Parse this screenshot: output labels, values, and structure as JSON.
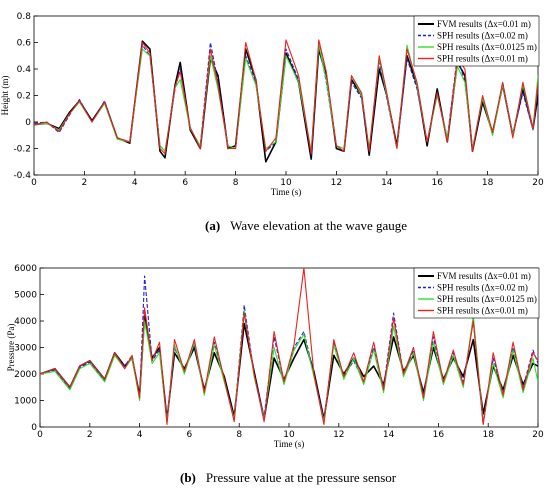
{
  "chart_data": [
    {
      "type": "line",
      "xlabel": "Time (s)",
      "ylabel": "Height (m)",
      "xlim": [
        0,
        20
      ],
      "ylim": [
        -0.4,
        0.8
      ],
      "xticks": [
        0,
        2,
        4,
        6,
        8,
        10,
        12,
        14,
        16,
        18,
        20
      ],
      "yticks": [
        -0.4,
        -0.2,
        0,
        0.2,
        0.4,
        0.6,
        0.8
      ],
      "legend_position": "top-right",
      "series": [
        {
          "name": "FVM results (Δx=0.01 m)",
          "color": "#000000",
          "dash": "solid",
          "x": [
            0,
            0.5,
            1,
            1.4,
            1.8,
            2.3,
            2.8,
            3.3,
            3.8,
            4.3,
            4.6,
            5,
            5.2,
            5.6,
            5.8,
            6.2,
            6.6,
            7,
            7.3,
            7.7,
            8,
            8.4,
            8.8,
            9.2,
            9.6,
            10,
            10.5,
            11,
            11.3,
            11.6,
            12,
            12.3,
            12.6,
            13,
            13.3,
            13.7,
            14,
            14.4,
            14.8,
            15.2,
            15.6,
            16,
            16.4,
            16.8,
            17.1,
            17.4,
            17.8,
            18.2,
            18.6,
            19,
            19.4,
            19.8,
            20
          ],
          "y": [
            -0.02,
            -0.01,
            -0.05,
            0.07,
            0.16,
            0.01,
            0.15,
            -0.12,
            -0.16,
            0.61,
            0.55,
            -0.22,
            -0.27,
            0.28,
            0.45,
            -0.06,
            -0.2,
            0.48,
            0.35,
            -0.2,
            -0.18,
            0.55,
            0.32,
            -0.3,
            -0.15,
            0.52,
            0.3,
            -0.28,
            0.55,
            0.35,
            -0.2,
            -0.22,
            0.32,
            0.2,
            -0.25,
            0.4,
            0.2,
            -0.18,
            0.5,
            0.28,
            -0.18,
            0.25,
            -0.15,
            0.45,
            0.35,
            -0.22,
            0.15,
            -0.08,
            0.28,
            -0.1,
            0.25,
            -0.05,
            0.2
          ]
        },
        {
          "name": "SPH results (Δx=0.02 m)",
          "color": "#1f1fd6",
          "dash": "dashed",
          "x": [
            0,
            0.5,
            1,
            1.4,
            1.8,
            2.3,
            2.8,
            3.3,
            3.8,
            4.3,
            4.6,
            5,
            5.2,
            5.6,
            5.8,
            6.2,
            6.6,
            7,
            7.3,
            7.7,
            8,
            8.4,
            8.8,
            9.2,
            9.6,
            10,
            10.5,
            11,
            11.3,
            11.6,
            12,
            12.3,
            12.6,
            13,
            13.3,
            13.7,
            14,
            14.4,
            14.8,
            15.2,
            15.6,
            16,
            16.4,
            16.8,
            17.1,
            17.4,
            17.8,
            18.2,
            18.6,
            19,
            19.4,
            19.8,
            20
          ],
          "y": [
            -0.01,
            0.0,
            -0.08,
            0.05,
            0.17,
            0.0,
            0.16,
            -0.12,
            -0.15,
            0.58,
            0.5,
            -0.18,
            -0.22,
            0.25,
            0.4,
            -0.05,
            -0.18,
            0.6,
            0.3,
            -0.18,
            -0.2,
            0.5,
            0.3,
            -0.22,
            -0.15,
            0.55,
            0.32,
            -0.25,
            0.6,
            0.3,
            -0.18,
            -0.2,
            0.3,
            0.18,
            -0.22,
            0.45,
            0.18,
            -0.2,
            0.48,
            0.25,
            -0.15,
            0.22,
            -0.12,
            0.5,
            0.3,
            -0.2,
            0.18,
            -0.1,
            0.3,
            -0.1,
            0.22,
            -0.06,
            0.25
          ]
        },
        {
          "name": "SPH results (Δx=0.0125 m)",
          "color": "#2de12d",
          "dash": "solid",
          "x": [
            0,
            0.5,
            1,
            1.4,
            1.8,
            2.3,
            2.8,
            3.3,
            3.8,
            4.3,
            4.6,
            5,
            5.2,
            5.6,
            5.8,
            6.2,
            6.6,
            7,
            7.3,
            7.7,
            8,
            8.4,
            8.8,
            9.2,
            9.6,
            10,
            10.5,
            11,
            11.3,
            11.6,
            12,
            12.3,
            12.6,
            13,
            13.3,
            13.7,
            14,
            14.4,
            14.8,
            15.2,
            15.6,
            16,
            16.4,
            16.8,
            17.1,
            17.4,
            17.8,
            18.2,
            18.6,
            19,
            19.4,
            19.8,
            20
          ],
          "y": [
            -0.02,
            -0.01,
            -0.06,
            0.06,
            0.15,
            0.0,
            0.14,
            -0.13,
            -0.15,
            0.55,
            0.5,
            -0.18,
            -0.22,
            0.26,
            0.32,
            -0.05,
            -0.18,
            0.5,
            0.25,
            -0.18,
            -0.2,
            0.48,
            0.28,
            -0.2,
            -0.15,
            0.5,
            0.3,
            -0.22,
            0.58,
            0.32,
            -0.18,
            -0.2,
            0.35,
            0.2,
            -0.2,
            0.48,
            0.2,
            -0.2,
            0.58,
            0.28,
            -0.15,
            0.2,
            -0.12,
            0.42,
            0.3,
            -0.2,
            0.18,
            -0.1,
            0.28,
            -0.1,
            0.28,
            -0.05,
            0.35
          ]
        },
        {
          "name": "SPH results (Δx=0.01 m)",
          "color": "#ee2020",
          "dash": "solid",
          "x": [
            0,
            0.5,
            1,
            1.4,
            1.8,
            2.3,
            2.8,
            3.3,
            3.8,
            4.3,
            4.6,
            5,
            5.2,
            5.6,
            5.8,
            6.2,
            6.6,
            7,
            7.3,
            7.7,
            8,
            8.4,
            8.8,
            9.2,
            9.6,
            10,
            10.5,
            11,
            11.3,
            11.6,
            12,
            12.3,
            12.6,
            13,
            13.3,
            13.7,
            14,
            14.4,
            14.8,
            15.2,
            15.6,
            16,
            16.4,
            16.8,
            17.1,
            17.4,
            17.8,
            18.2,
            18.6,
            19,
            19.4,
            19.8,
            20
          ],
          "y": [
            -0.02,
            0.0,
            -0.07,
            0.06,
            0.16,
            0.0,
            0.15,
            -0.12,
            -0.15,
            0.6,
            0.52,
            -0.2,
            -0.24,
            0.27,
            0.38,
            -0.04,
            -0.2,
            0.55,
            0.28,
            -0.2,
            -0.2,
            0.6,
            0.32,
            -0.22,
            -0.12,
            0.62,
            0.35,
            -0.24,
            0.62,
            0.38,
            -0.18,
            -0.22,
            0.35,
            0.22,
            -0.22,
            0.5,
            0.22,
            -0.2,
            0.55,
            0.3,
            -0.15,
            0.22,
            -0.15,
            0.48,
            0.4,
            -0.22,
            0.2,
            -0.08,
            0.3,
            -0.12,
            0.3,
            -0.05,
            0.3
          ]
        }
      ],
      "caption": {
        "label": "(a)",
        "text": "Wave elevation at the wave gauge"
      }
    },
    {
      "type": "line",
      "xlabel": "Time (s)",
      "ylabel": "Pressure (Pa)",
      "xlim": [
        0,
        20
      ],
      "ylim": [
        0,
        6000
      ],
      "xticks": [
        0,
        2,
        4,
        6,
        8,
        10,
        12,
        14,
        16,
        18,
        20
      ],
      "yticks": [
        0,
        1000,
        2000,
        3000,
        4000,
        5000,
        6000
      ],
      "legend_position": "top-right",
      "series": [
        {
          "name": "FVM results (Δx=0.01 m)",
          "color": "#000000",
          "dash": "solid",
          "x": [
            0,
            0.6,
            1.2,
            1.6,
            2,
            2.6,
            3,
            3.4,
            3.7,
            4,
            4.2,
            4.5,
            4.8,
            5.1,
            5.4,
            5.8,
            6.2,
            6.6,
            7,
            7.4,
            7.8,
            8.2,
            8.6,
            9,
            9.4,
            9.8,
            10.2,
            10.6,
            11,
            11.4,
            11.8,
            12.2,
            12.6,
            13,
            13.4,
            13.8,
            14.2,
            14.6,
            15,
            15.4,
            15.8,
            16.2,
            16.6,
            17,
            17.4,
            17.8,
            18.2,
            18.6,
            19,
            19.4,
            19.8,
            20
          ],
          "y": [
            2000,
            2200,
            1500,
            2300,
            2500,
            1800,
            2800,
            2300,
            2600,
            1200,
            4200,
            2600,
            3000,
            300,
            2800,
            2200,
            3000,
            1400,
            2800,
            1900,
            400,
            3900,
            2100,
            300,
            2600,
            1800,
            2600,
            3300,
            2100,
            300,
            2700,
            2000,
            2600,
            1900,
            2300,
            1600,
            3400,
            2100,
            2700,
            1300,
            3000,
            1800,
            2600,
            1900,
            3300,
            500,
            2300,
            1400,
            2700,
            1600,
            2400,
            2300
          ]
        },
        {
          "name": "SPH results (Δx=0.02 m)",
          "color": "#1f1fd6",
          "dash": "dashed",
          "x": [
            0,
            0.6,
            1.2,
            1.6,
            2,
            2.6,
            3,
            3.4,
            3.7,
            4,
            4.2,
            4.5,
            4.8,
            5.1,
            5.4,
            5.8,
            6.2,
            6.6,
            7,
            7.4,
            7.8,
            8.2,
            8.6,
            9,
            9.4,
            9.8,
            10.2,
            10.6,
            11,
            11.4,
            11.8,
            12.2,
            12.6,
            13,
            13.4,
            13.8,
            14.2,
            14.6,
            15,
            15.4,
            15.8,
            16.2,
            16.6,
            17,
            17.4,
            17.8,
            18.2,
            18.6,
            19,
            19.4,
            19.8,
            20
          ],
          "y": [
            2000,
            2150,
            1450,
            2250,
            2450,
            1750,
            2750,
            2300,
            2700,
            1100,
            5700,
            2500,
            2900,
            250,
            3000,
            2100,
            3100,
            1300,
            3200,
            1800,
            300,
            4600,
            2000,
            400,
            3400,
            1700,
            3000,
            3600,
            2000,
            250,
            3200,
            1900,
            2500,
            1700,
            3000,
            1500,
            4300,
            2000,
            2900,
            1200,
            3400,
            1700,
            2800,
            1700,
            4000,
            100,
            2600,
            1300,
            3000,
            1500,
            2900,
            2400
          ]
        },
        {
          "name": "SPH results (Δx=0.0125 m)",
          "color": "#2de12d",
          "dash": "solid",
          "x": [
            0,
            0.6,
            1.2,
            1.6,
            2,
            2.6,
            3,
            3.4,
            3.7,
            4,
            4.2,
            4.5,
            4.8,
            5.1,
            5.4,
            5.8,
            6.2,
            6.6,
            7,
            7.4,
            7.8,
            8.2,
            8.6,
            9,
            9.4,
            9.8,
            10.2,
            10.6,
            11,
            11.4,
            11.8,
            12.2,
            12.6,
            13,
            13.4,
            13.8,
            14.2,
            14.6,
            15,
            15.4,
            15.8,
            16.2,
            16.6,
            17,
            17.4,
            17.8,
            18.2,
            18.6,
            19,
            19.4,
            19.8,
            20
          ],
          "y": [
            2000,
            2100,
            1400,
            2200,
            2400,
            1700,
            2700,
            2200,
            2600,
            1000,
            4000,
            2400,
            2800,
            200,
            3100,
            2000,
            3200,
            1200,
            3100,
            1700,
            300,
            4400,
            1900,
            300,
            3000,
            1600,
            2900,
            3500,
            1900,
            200,
            3100,
            1800,
            2600,
            1600,
            2900,
            1300,
            3800,
            1900,
            2800,
            1000,
            3200,
            1600,
            2700,
            1500,
            4200,
            200,
            2400,
            1100,
            2900,
            1300,
            2600,
            1700
          ]
        },
        {
          "name": "SPH results (Δx=0.01 m)",
          "color": "#ee2020",
          "dash": "solid",
          "x": [
            0,
            0.6,
            1.2,
            1.6,
            2,
            2.6,
            3,
            3.4,
            3.7,
            4,
            4.2,
            4.5,
            4.8,
            5.1,
            5.4,
            5.8,
            6.2,
            6.6,
            7,
            7.4,
            7.8,
            8.2,
            8.6,
            9,
            9.4,
            9.8,
            10.2,
            10.6,
            11,
            11.4,
            11.8,
            12.2,
            12.6,
            13,
            13.4,
            13.8,
            14.2,
            14.6,
            15,
            15.4,
            15.8,
            16.2,
            16.6,
            17,
            17.4,
            17.8,
            18.2,
            18.6,
            19,
            19.4,
            19.8,
            20
          ],
          "y": [
            2000,
            2200,
            1500,
            2300,
            2500,
            1800,
            2800,
            2200,
            2700,
            1100,
            4500,
            2500,
            3200,
            100,
            3300,
            2100,
            3300,
            1300,
            3400,
            1800,
            200,
            4300,
            2000,
            200,
            3600,
            1700,
            3100,
            6000,
            2000,
            100,
            3300,
            1900,
            2800,
            1700,
            3200,
            1400,
            4100,
            2000,
            3000,
            1100,
            3600,
            1700,
            2900,
            1600,
            4000,
            100,
            2800,
            1200,
            3200,
            1400,
            2800,
            2500
          ]
        }
      ],
      "caption": {
        "label": "(b)",
        "text": "Pressure value at the pressure sensor"
      }
    }
  ]
}
